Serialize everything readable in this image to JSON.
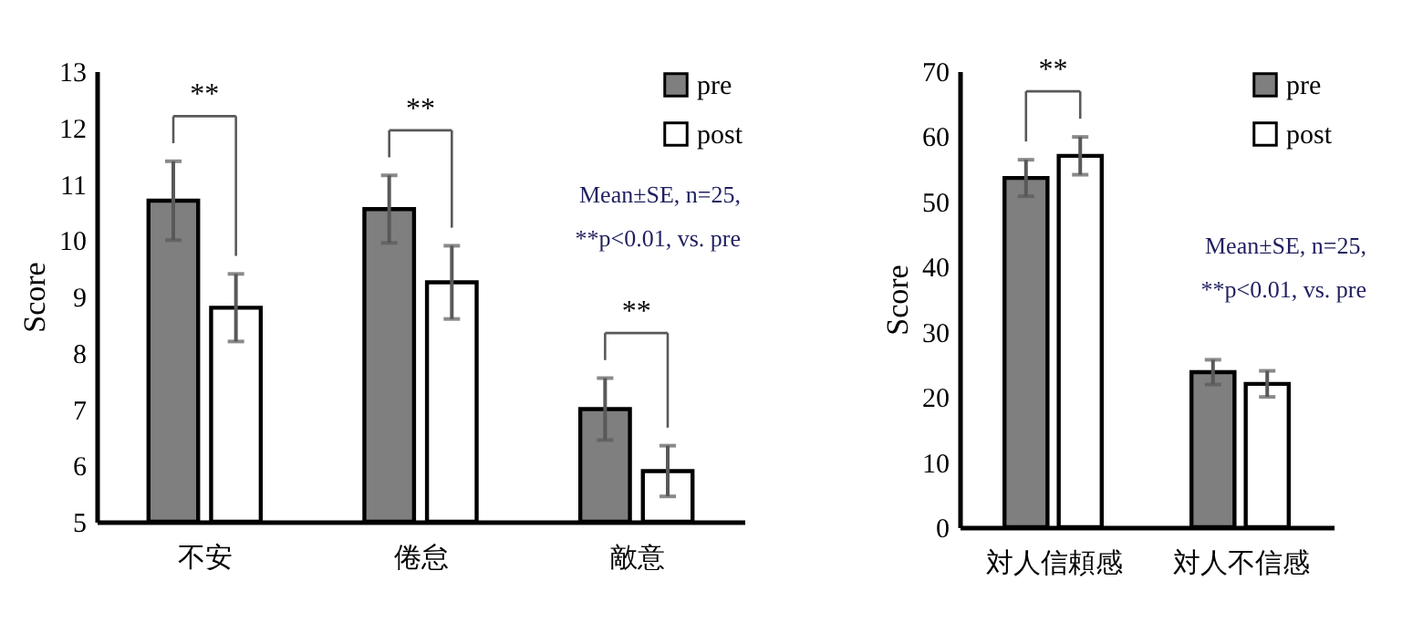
{
  "chart_data": [
    {
      "type": "bar",
      "categories": [
        "不安",
        "倦怠",
        "敵意"
      ],
      "ylabel": "Score",
      "ylim": [
        5,
        13
      ],
      "yticks": [
        5,
        6,
        7,
        8,
        9,
        10,
        11,
        12,
        13
      ],
      "grid": false,
      "legend": "top right",
      "series": [
        {
          "name": "pre",
          "color": "#7f7f7f",
          "values": [
            10.7,
            10.55,
            7.0
          ],
          "errors": [
            0.7,
            0.6,
            0.55
          ]
        },
        {
          "name": "post",
          "color": "#ffffff",
          "values": [
            8.8,
            9.25,
            5.9
          ],
          "errors": [
            0.6,
            0.65,
            0.45
          ]
        }
      ],
      "annotations": [
        "**",
        "**",
        "**",
        "Mean±SE, n=25,",
        "**p<0.01, vs. pre"
      ]
    },
    {
      "type": "bar",
      "categories": [
        "対人信頼感",
        "対人不信感"
      ],
      "ylabel": "Score",
      "ylim": [
        0,
        70
      ],
      "yticks": [
        0,
        10,
        20,
        30,
        40,
        50,
        60,
        70
      ],
      "grid": false,
      "legend": "top right",
      "series": [
        {
          "name": "pre",
          "color": "#7f7f7f",
          "values": [
            53.6,
            23.8
          ],
          "errors": [
            2.8,
            1.9
          ]
        },
        {
          "name": "post",
          "color": "#ffffff",
          "values": [
            57.0,
            22.0
          ],
          "errors": [
            2.9,
            2.0
          ]
        }
      ],
      "annotations": [
        "**",
        "Mean±SE, n=25,",
        "**p<0.01, vs. pre"
      ]
    }
  ]
}
